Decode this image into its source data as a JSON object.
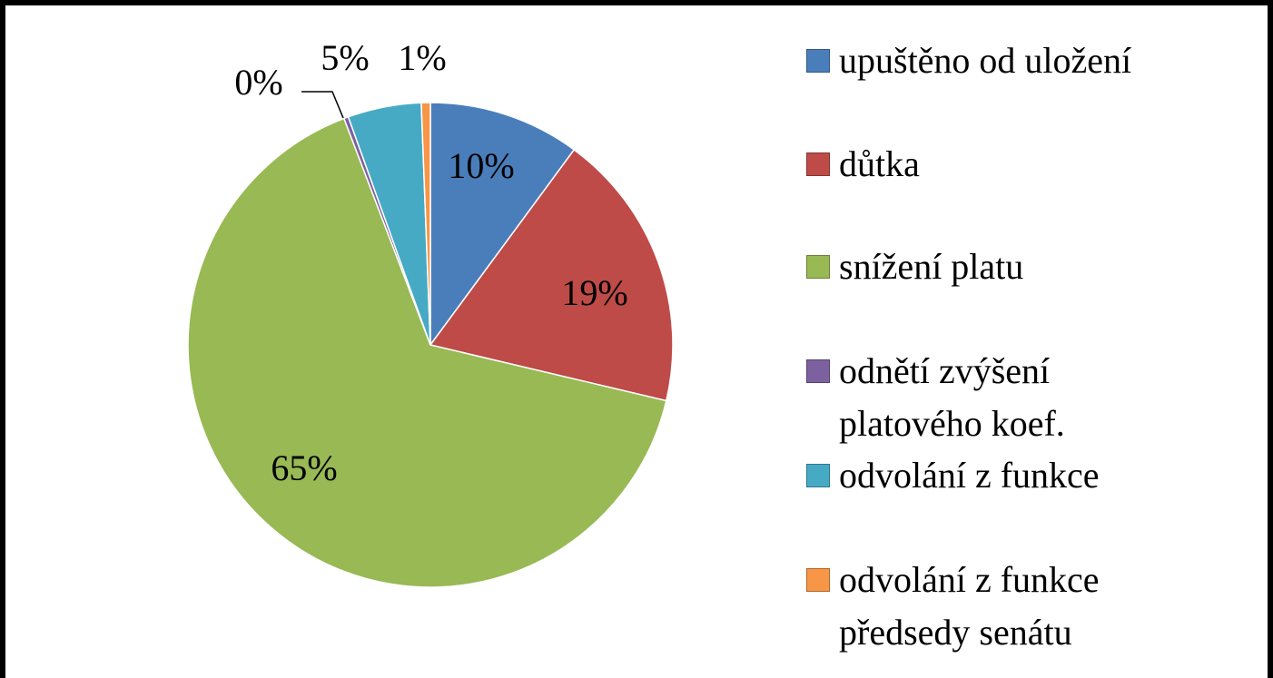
{
  "chart_data": {
    "type": "pie",
    "categories": [
      "upuštěno od uložení",
      "důtka",
      "snížení platu",
      "odnětí zvýšení platového koef.",
      "odvolání z funkce",
      "odvolání z funkce předsedy senátu"
    ],
    "values": [
      10.1,
      18.6,
      65.5,
      0.3,
      4.9,
      0.6
    ],
    "value_labels": [
      "10%",
      "19%",
      "65%",
      "0%",
      "5%",
      "1%"
    ],
    "colors": [
      "#4a7ebb",
      "#be4b48",
      "#98b954",
      "#7d60a0",
      "#46aac5",
      "#f79646"
    ]
  }
}
